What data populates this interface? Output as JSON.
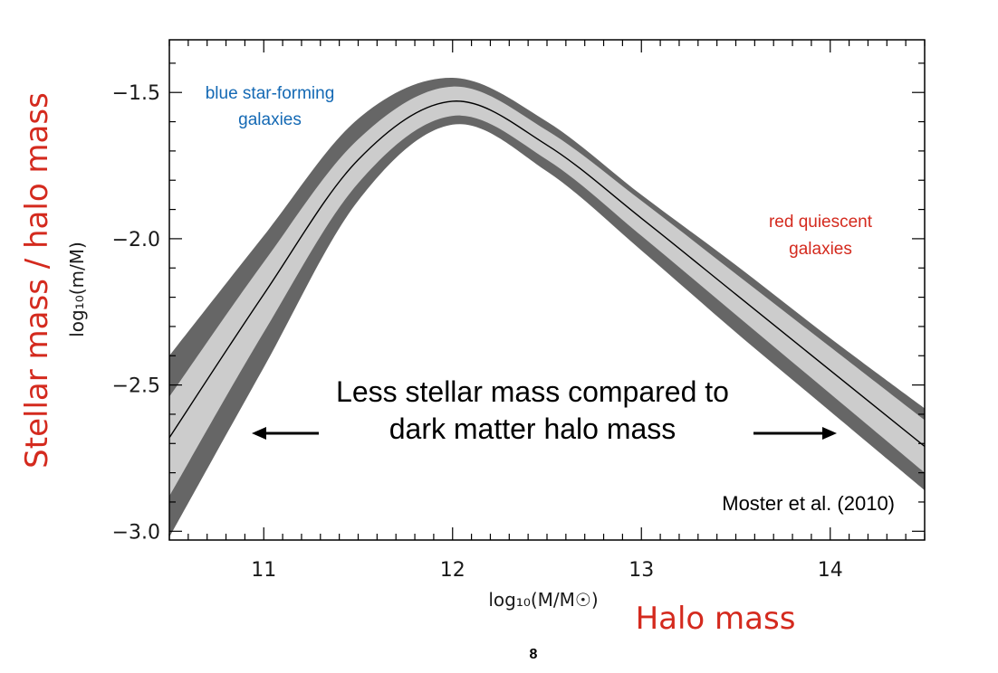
{
  "chart_data": {
    "type": "line",
    "xlabel": "log₁₀(M/M☉)",
    "ylabel": "log₁₀(m/M)",
    "xlim": [
      10.5,
      14.5
    ],
    "ylim": [
      -3.03,
      -1.32
    ],
    "x_ticks": [
      11,
      12,
      13,
      14
    ],
    "x_tick_labels": [
      "11",
      "12",
      "13",
      "14"
    ],
    "y_ticks": [
      -1.5,
      -2.0,
      -2.5,
      -3.0
    ],
    "y_tick_labels": [
      "−1.5",
      "−2.0",
      "−2.5",
      "−3.0"
    ],
    "grid": false,
    "series": [
      {
        "role": "best-fit",
        "x": [
          10.5,
          11.0,
          11.5,
          12.0,
          12.5,
          13.0,
          13.5,
          14.0,
          14.5
        ],
        "y": [
          -2.68,
          -2.19,
          -1.73,
          -1.53,
          -1.68,
          -1.93,
          -2.19,
          -2.45,
          -2.71
        ]
      },
      {
        "role": "inner-band-upper",
        "x": [
          10.5,
          11.0,
          11.5,
          12.0,
          12.5,
          13.0,
          13.5,
          14.0,
          14.5
        ],
        "y": [
          -2.54,
          -2.08,
          -1.66,
          -1.48,
          -1.63,
          -1.87,
          -2.12,
          -2.37,
          -2.62
        ]
      },
      {
        "role": "inner-band-lower",
        "x": [
          10.5,
          11.0,
          11.5,
          12.0,
          12.5,
          13.0,
          13.5,
          14.0,
          14.5
        ],
        "y": [
          -2.88,
          -2.32,
          -1.81,
          -1.58,
          -1.73,
          -1.99,
          -2.26,
          -2.53,
          -2.8
        ]
      },
      {
        "role": "outer-band-upper",
        "x": [
          10.5,
          11.0,
          11.5,
          12.0,
          12.5,
          13.0,
          13.5,
          14.0,
          14.5
        ],
        "y": [
          -2.4,
          -1.99,
          -1.59,
          -1.45,
          -1.6,
          -1.85,
          -2.09,
          -2.34,
          -2.58
        ]
      },
      {
        "role": "outer-band-lower",
        "x": [
          10.5,
          11.0,
          11.5,
          12.0,
          12.5,
          13.0,
          13.5,
          14.0,
          14.5
        ],
        "y": [
          -3.02,
          -2.44,
          -1.87,
          -1.61,
          -1.77,
          -2.04,
          -2.32,
          -2.59,
          -2.86
        ]
      }
    ],
    "colors": {
      "outer_band": "#666666",
      "inner_band": "#cccccc",
      "line": "#000000"
    },
    "annotations": {
      "blue_label": [
        "blue star-forming",
        "galaxies"
      ],
      "red_label": [
        "red quiescent",
        "galaxies"
      ],
      "center_text": [
        "Less stellar mass compared to",
        "dark matter halo mass"
      ],
      "credit": "Moster et al. (2010)"
    }
  },
  "overlay": {
    "y_title": "Stellar mass / halo mass",
    "x_title": "Halo mass",
    "page_number": "8",
    "accent_red": "#d42a1e",
    "accent_blue": "#1469b4"
  }
}
